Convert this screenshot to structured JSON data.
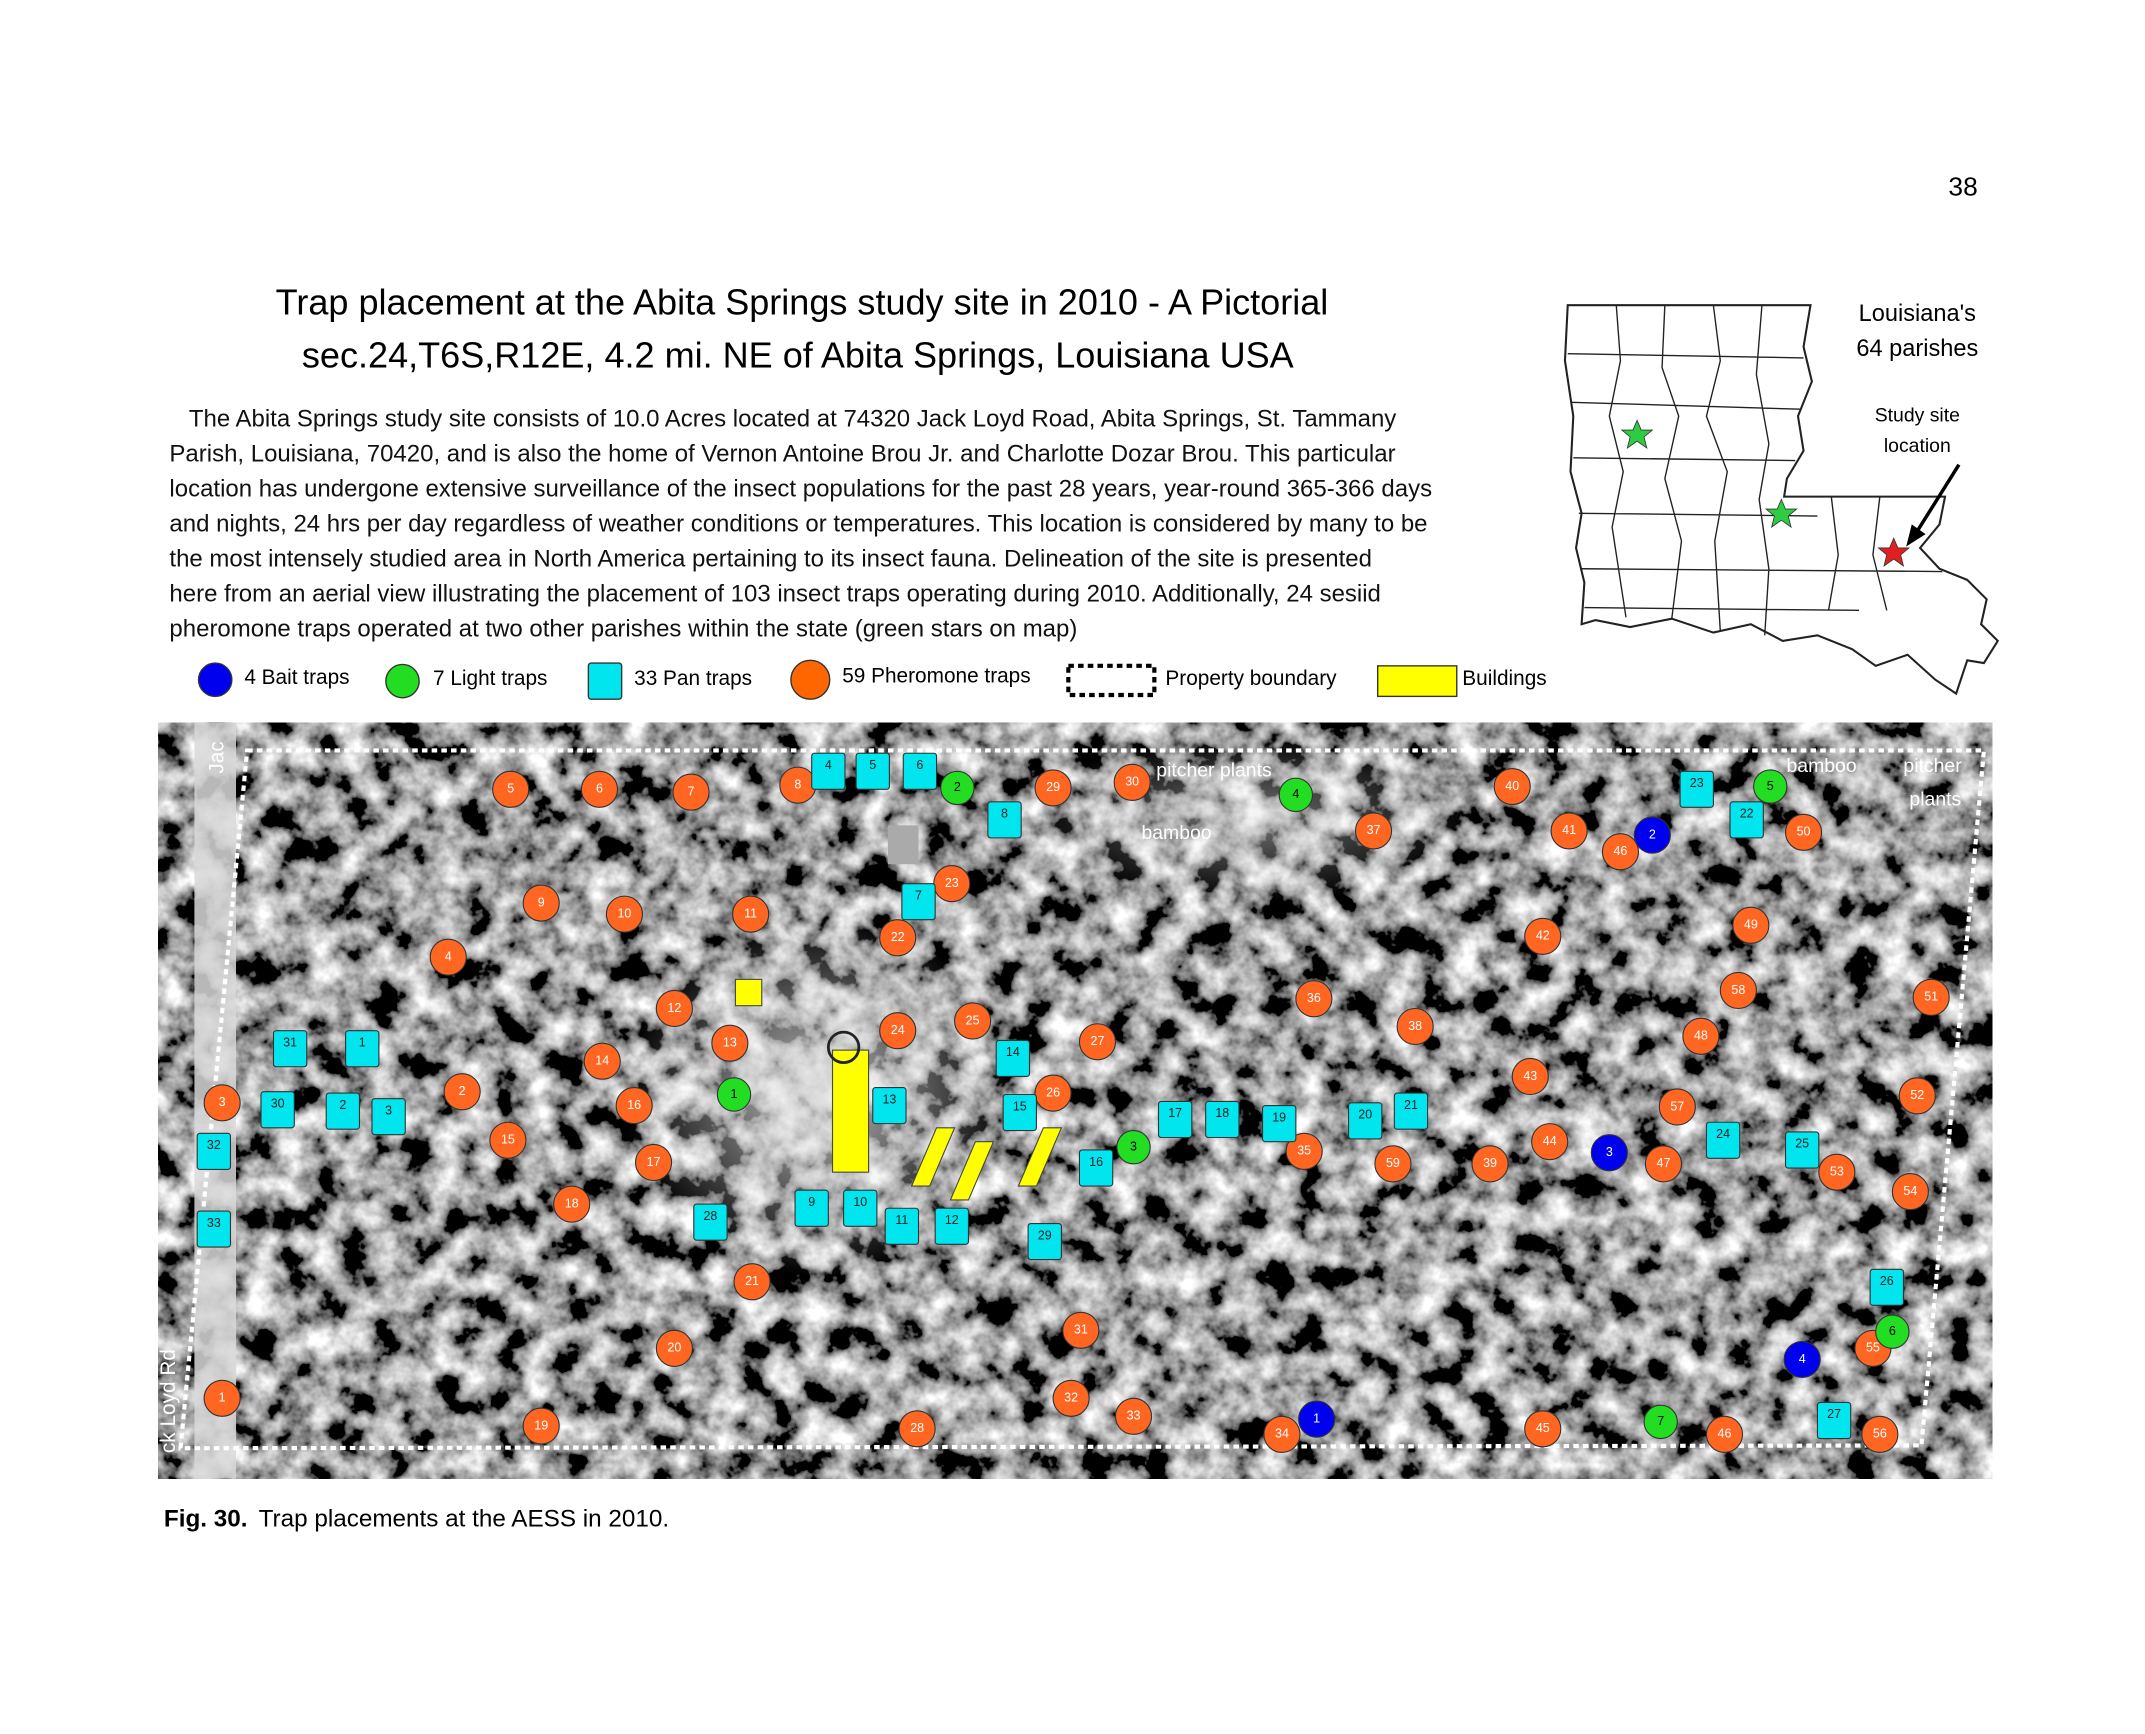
{
  "page_number": "38",
  "title": [
    "Trap placement at the Abita Springs study site in 2010 - A Pictorial",
    "sec.24,T6S,R12E, 4.2 mi. NE of Abita Springs, Louisiana USA"
  ],
  "paragraph": [
    "The Abita Springs study site consists of 10.0 Acres located at 74320 Jack Loyd Road, Abita Springs, St. Tammany",
    "Parish, Louisiana, 70420, and is also the home of Vernon Antoine Brou Jr. and Charlotte Dozar Brou. This particular",
    "location has undergone extensive surveillance of the insect populations for the past 28 years, year-round 365-366 days",
    "and nights, 24 hrs per day regardless of weather conditions or temperatures. This location is considered by many to be",
    "the most intensely studied area in North America pertaining to its insect fauna. Delineation of the site is presented",
    "here from an aerial view illustrating the placement of 103 insect traps operating during 2010. Additionally, 24 sesiid",
    "pheromone traps operated at two other parishes within the state (green stars on map)"
  ],
  "legend": [
    "4 Bait traps",
    "7 Light traps",
    "33 Pan traps",
    "59 Pheromone traps",
    "Property boundary",
    "Buildings"
  ],
  "inset": {
    "title": [
      "Louisiana's",
      "64 parishes"
    ],
    "pointer": [
      "Study site",
      "location"
    ]
  },
  "map": {
    "labels": [
      "pitcher plants",
      "bamboo",
      "bamboo",
      "pitcher",
      "plants"
    ],
    "road": [
      "Jac",
      "ck Loyd Rd"
    ],
    "traps": {
      "pheromone": [
        "1",
        "2",
        "3",
        "4",
        "5",
        "6",
        "7",
        "8",
        "9",
        "10",
        "11",
        "12",
        "13",
        "14",
        "15",
        "16",
        "17",
        "18",
        "19",
        "20",
        "21",
        "22",
        "23",
        "24",
        "25",
        "26",
        "27",
        "28",
        "29",
        "30",
        "31",
        "32",
        "33",
        "34",
        "35",
        "36",
        "37",
        "38",
        "39",
        "40",
        "41",
        "42",
        "43",
        "44",
        "45",
        "46",
        "47",
        "48",
        "49",
        "50",
        "51",
        "52",
        "53",
        "54",
        "55",
        "56",
        "57",
        "58",
        "59",
        "46"
      ],
      "pan": [
        "1",
        "2",
        "3",
        "4",
        "5",
        "6",
        "7",
        "8",
        "9",
        "10",
        "11",
        "12",
        "13",
        "14",
        "15",
        "16",
        "17",
        "18",
        "19",
        "20",
        "21",
        "22",
        "23",
        "24",
        "25",
        "26",
        "27",
        "28",
        "29",
        "30",
        "31",
        "32",
        "33"
      ],
      "light": [
        "1",
        "2",
        "3",
        "4",
        "5",
        "6",
        "7"
      ],
      "bait": [
        "1",
        "2",
        "3",
        "4"
      ]
    }
  },
  "caption": {
    "label": "Fig. 30.",
    "text": "Trap placements at the AESS in 2010."
  }
}
